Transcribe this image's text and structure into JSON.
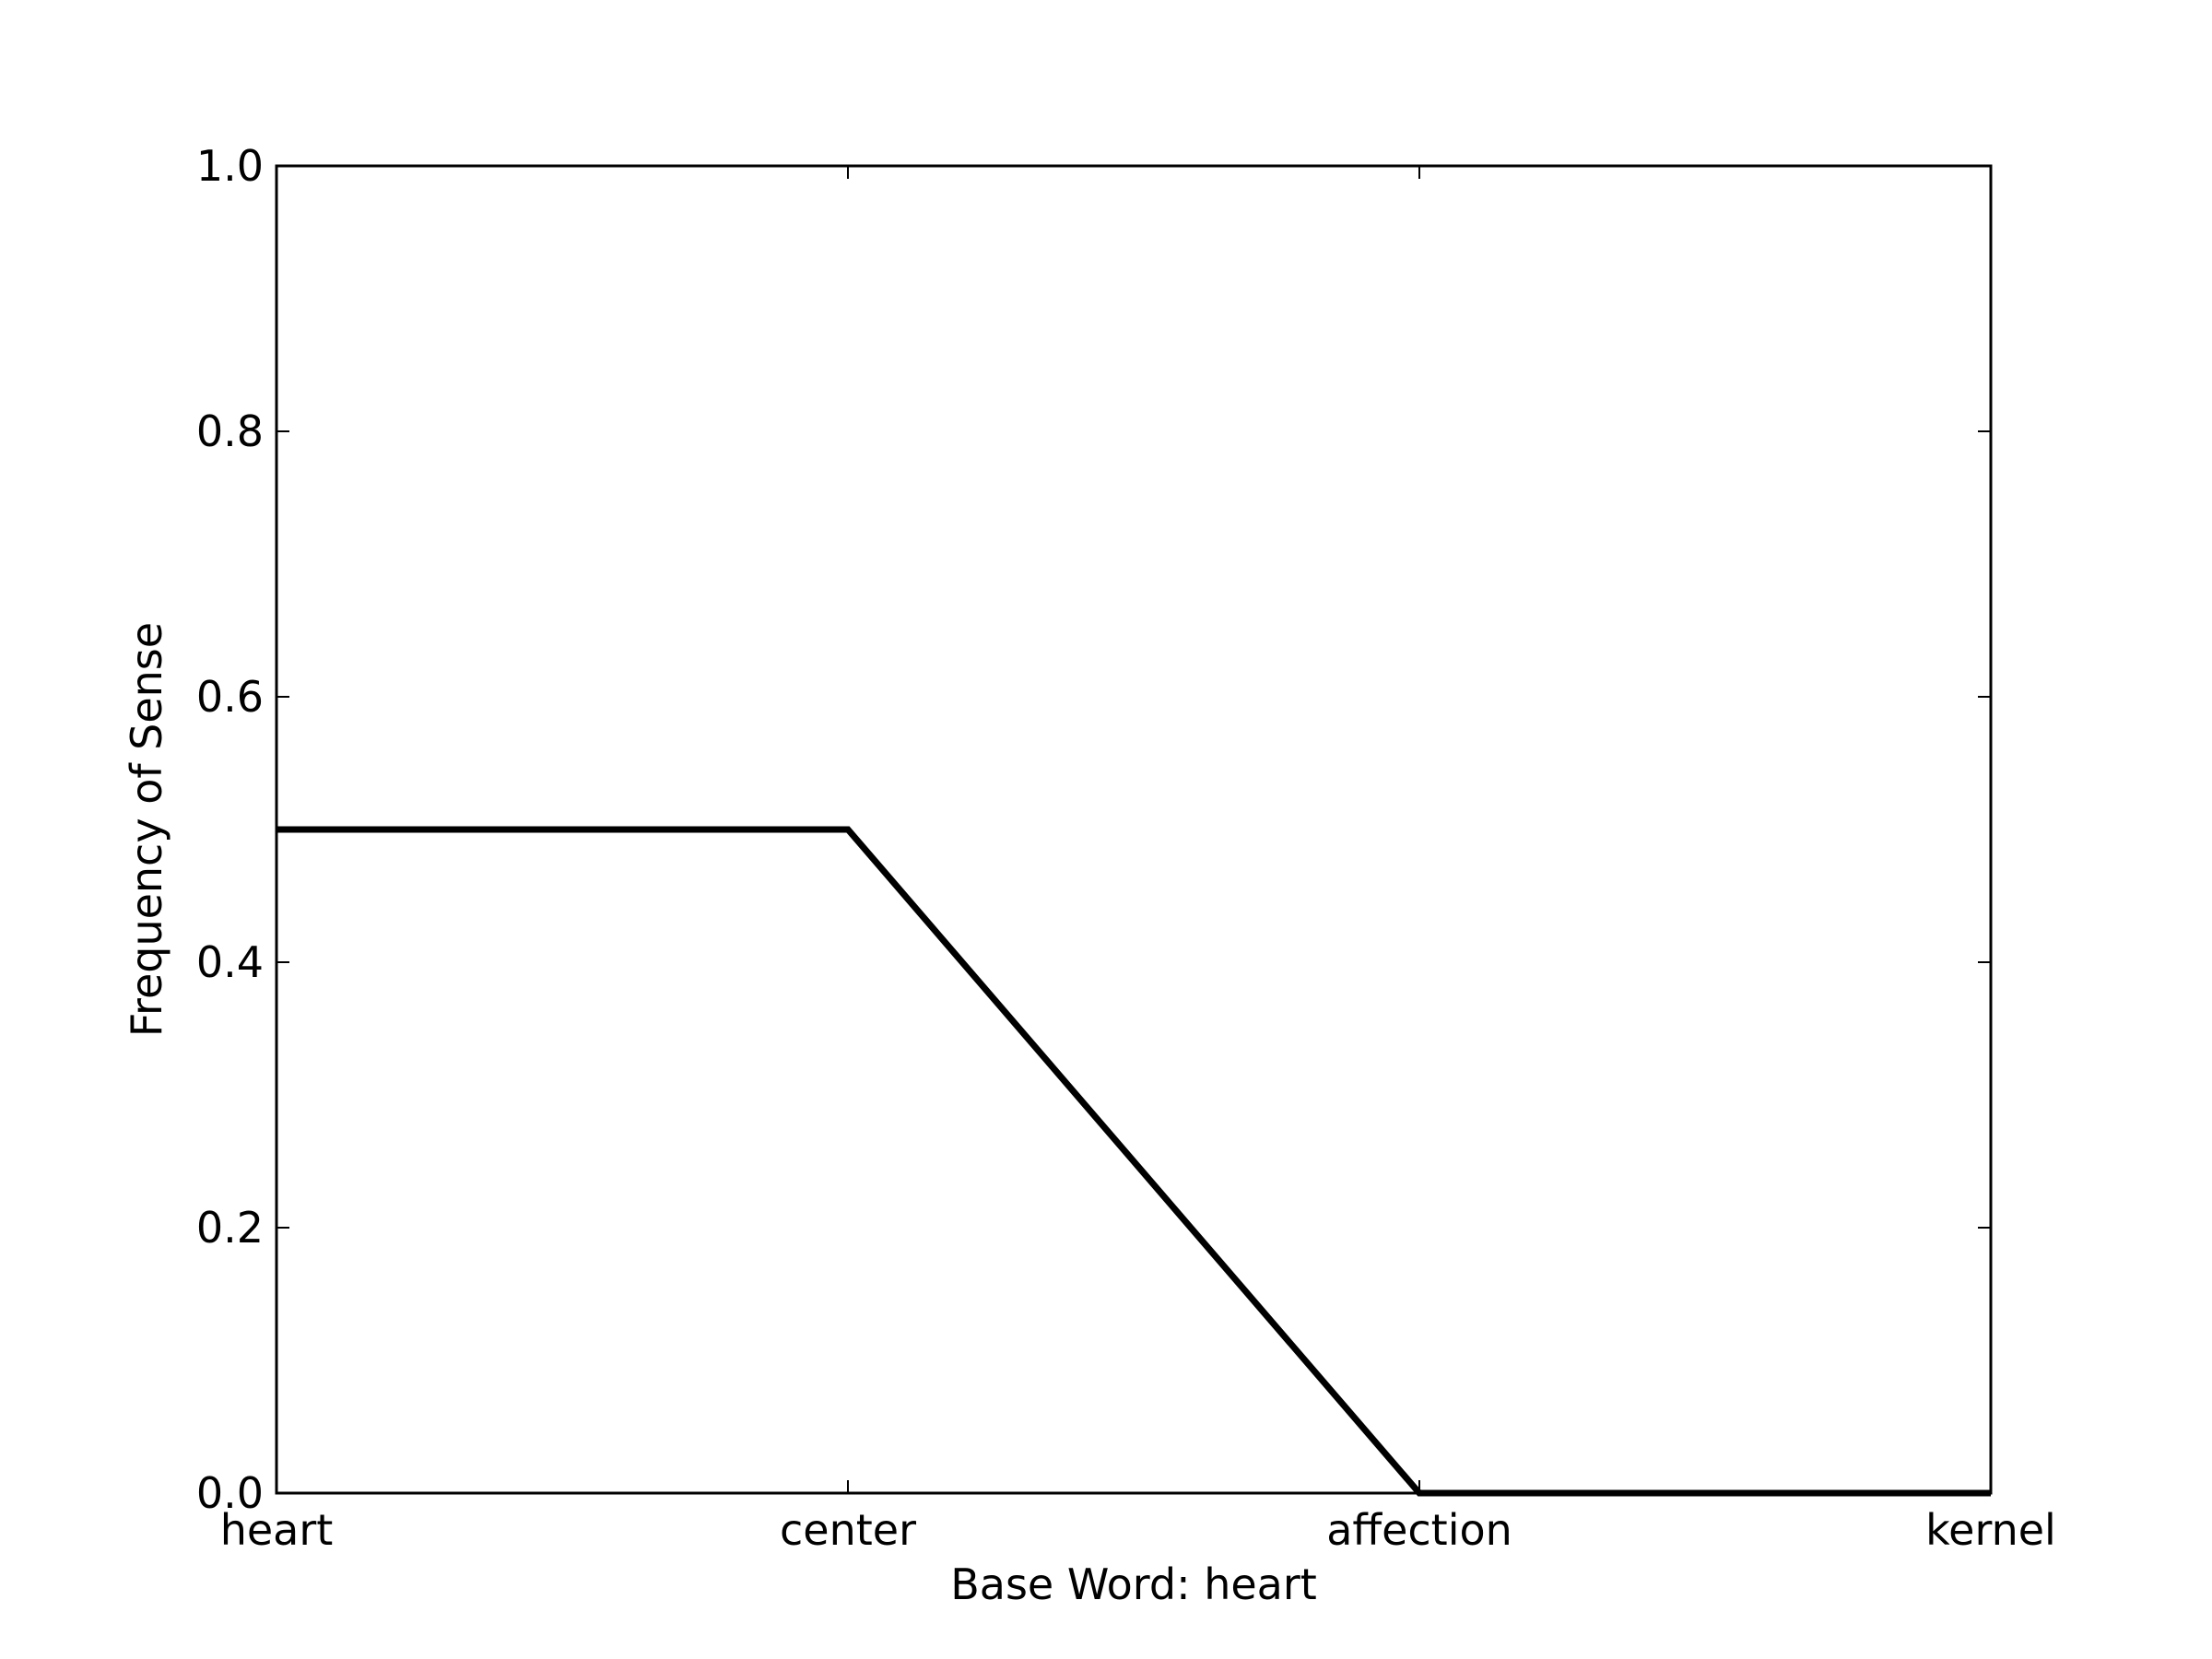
{
  "chart_data": {
    "type": "line",
    "title": "",
    "xlabel": "Base Word: heart",
    "ylabel": "Frequency of Sense",
    "categories": [
      "heart",
      "center",
      "affection",
      "kernel"
    ],
    "series": [
      {
        "values": [
          0.5,
          0.5,
          0.0,
          0.0
        ]
      }
    ],
    "ylim": [
      0,
      1.0
    ],
    "yticks": [
      "0.0",
      "0.2",
      "0.4",
      "0.6",
      "0.8",
      "1.0"
    ],
    "grid": false,
    "line_color": "#000000"
  }
}
